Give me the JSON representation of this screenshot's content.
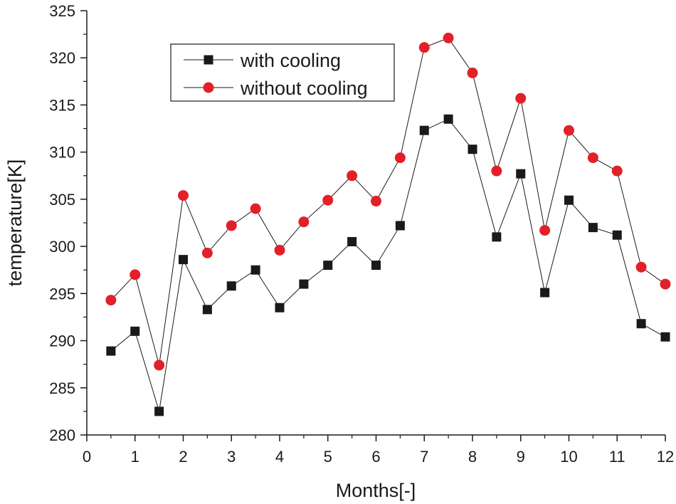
{
  "chart_data": {
    "type": "line",
    "title": "",
    "xlabel": "Months[-]",
    "ylabel": "temperature[K]",
    "xlim": [
      0,
      12
    ],
    "ylim": [
      280,
      325
    ],
    "xticks": [
      0,
      1,
      2,
      3,
      4,
      5,
      6,
      7,
      8,
      9,
      10,
      11,
      12
    ],
    "yticks": [
      280,
      285,
      290,
      295,
      300,
      305,
      310,
      315,
      320,
      325
    ],
    "x": [
      0.5,
      1,
      1.5,
      2,
      2.5,
      3,
      3.5,
      4,
      4.5,
      5,
      5.5,
      6,
      6.5,
      7,
      7.5,
      8,
      8.5,
      9,
      9.5,
      10,
      10.5,
      11,
      11.5,
      12
    ],
    "series": [
      {
        "name": "with cooling",
        "marker": "square",
        "color": "#1a1a1a",
        "values": [
          288.9,
          291.0,
          282.5,
          298.6,
          293.3,
          295.8,
          297.5,
          293.5,
          296.0,
          298.0,
          300.5,
          298.0,
          302.2,
          312.3,
          313.5,
          310.3,
          301.0,
          307.7,
          295.1,
          304.9,
          302.0,
          301.2,
          291.8,
          290.4
        ]
      },
      {
        "name": "without cooling",
        "marker": "circle",
        "color": "#e3202a",
        "values": [
          294.3,
          297.0,
          287.4,
          305.4,
          299.3,
          302.2,
          304.0,
          299.6,
          302.6,
          304.9,
          307.5,
          304.8,
          309.4,
          321.1,
          322.1,
          318.4,
          308.0,
          315.7,
          301.7,
          312.3,
          309.4,
          308.0,
          297.8,
          296.0
        ]
      }
    ],
    "legend": "top-left",
    "grid": false
  }
}
